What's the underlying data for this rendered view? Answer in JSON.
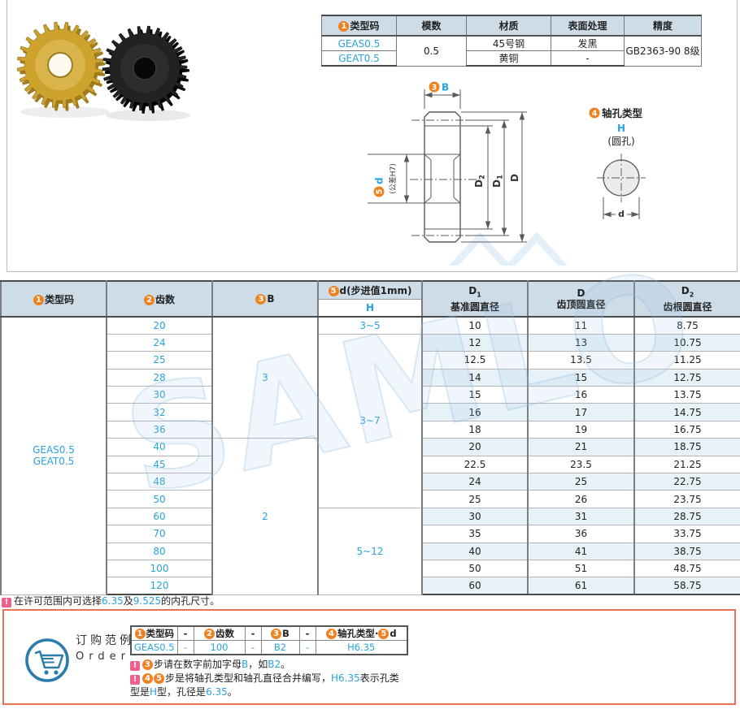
{
  "page": {
    "watermark": "SAMLO"
  },
  "info_table": {
    "col_type": {
      "num": "1",
      "label": "类型码"
    },
    "col_module": "模数",
    "col_material": "材质",
    "col_surface": "表面处理",
    "col_precision": "精度",
    "type_codes": [
      "GEAS0.5",
      "GEAT0.5"
    ],
    "module": "0.5",
    "materials": [
      "45号钢",
      "黄铜"
    ],
    "surfaces": [
      "发黑",
      "-"
    ],
    "precision": "GB2363-90 8级"
  },
  "drawing": {
    "b": {
      "num": "3",
      "label": "B"
    },
    "d": {
      "num": "5",
      "label": "d",
      "tol": "(公差H7)"
    },
    "dia": {
      "d2_main": "D",
      "d2_sub": "2",
      "d1_main": "D",
      "d1_sub": "1",
      "d_main": "D"
    },
    "hole": {
      "num": "4",
      "title": "轴孔类型",
      "type": "H",
      "desc": "(圆孔)",
      "dim": "d"
    }
  },
  "main_table": {
    "h_type": {
      "num": "1",
      "label": "类型码"
    },
    "h_teeth": {
      "num": "2",
      "label": "齿数"
    },
    "h_b": {
      "num": "3",
      "label": "B"
    },
    "h_d": {
      "num": "5",
      "label": "d(步进值1mm)",
      "sub": "H"
    },
    "h_d1": {
      "main": "D",
      "sub": "1",
      "desc": "基准圆直径"
    },
    "h_da": {
      "main": "D",
      "desc": "齿顶圆直径"
    },
    "h_d2": {
      "main": "D",
      "sub": "2",
      "desc": "齿根圆直径"
    },
    "type_codes": [
      "GEAS0.5",
      "GEAT0.5"
    ],
    "b_groups": [
      "3",
      "2"
    ],
    "d_groups": [
      "3~5",
      "3~7",
      "5~12"
    ],
    "rows": [
      {
        "teeth": "20",
        "d1": "10",
        "d": "11",
        "d2": "8.75"
      },
      {
        "teeth": "24",
        "d1": "12",
        "d": "13",
        "d2": "10.75"
      },
      {
        "teeth": "25",
        "d1": "12.5",
        "d": "13.5",
        "d2": "11.25"
      },
      {
        "teeth": "28",
        "d1": "14",
        "d": "15",
        "d2": "12.75"
      },
      {
        "teeth": "30",
        "d1": "15",
        "d": "16",
        "d2": "13.75"
      },
      {
        "teeth": "32",
        "d1": "16",
        "d": "17",
        "d2": "14.75"
      },
      {
        "teeth": "36",
        "d1": "18",
        "d": "19",
        "d2": "16.75"
      },
      {
        "teeth": "40",
        "d1": "20",
        "d": "21",
        "d2": "18.75"
      },
      {
        "teeth": "45",
        "d1": "22.5",
        "d": "23.5",
        "d2": "21.25"
      },
      {
        "teeth": "48",
        "d1": "24",
        "d": "25",
        "d2": "22.75"
      },
      {
        "teeth": "50",
        "d1": "25",
        "d": "26",
        "d2": "23.75"
      },
      {
        "teeth": "60",
        "d1": "30",
        "d": "31",
        "d2": "28.75"
      },
      {
        "teeth": "70",
        "d1": "35",
        "d": "36",
        "d2": "33.75"
      },
      {
        "teeth": "80",
        "d1": "40",
        "d": "41",
        "d2": "38.75"
      },
      {
        "teeth": "100",
        "d1": "50",
        "d": "51",
        "d2": "48.75"
      },
      {
        "teeth": "120",
        "d1": "60",
        "d": "61",
        "d2": "58.75"
      }
    ],
    "footnote": {
      "warn": "!",
      "pre": "在许可范围内可选择",
      "v1": "6.35",
      "mid": "及",
      "v2": "9.525",
      "post": "的内孔尺寸。"
    }
  },
  "order": {
    "title_cn": "订购范例",
    "title_en": "Order",
    "dash": "-",
    "table": {
      "c1": {
        "num": "1",
        "label": "类型码"
      },
      "c2": {
        "num": "2",
        "label": "齿数"
      },
      "c3": {
        "num": "3",
        "label": "B"
      },
      "c4": {
        "num1": "4",
        "label1": "轴孔类型",
        "dot": "·",
        "num2": "5",
        "label2": "d"
      },
      "v1": "GEAS0.5",
      "v2": "100",
      "v3": "B2",
      "v4": "H6.35"
    },
    "notes": {
      "n1": {
        "warn": "!",
        "num": "3",
        "s1": "步请在数字前加字母",
        "b1": "B",
        "s2": "，如",
        "b2": "B2",
        "s3": "。"
      },
      "n2": {
        "warn": "!",
        "num1": "4",
        "num2": "5",
        "s1": "步是将轴孔类型和轴孔直径合并编写，",
        "b1": "H6.35",
        "s2": "表示孔类"
      },
      "n3": {
        "s1": "型是",
        "b1": "H",
        "s2": "型，孔径是",
        "b2": "6.35",
        "s3": "。"
      }
    }
  }
}
